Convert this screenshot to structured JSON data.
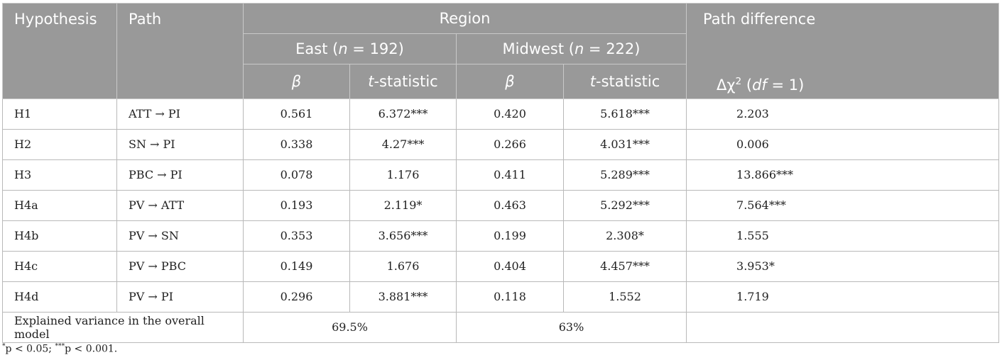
{
  "header": {
    "hypothesis": "Hypothesis",
    "path": "Path",
    "region": "Region",
    "path_difference": "Path difference",
    "east_label": "East (",
    "east_n": "n",
    "east_rest": " = 192)",
    "midwest_label": "Midwest (",
    "midwest_n": "n",
    "midwest_rest": " = 222)",
    "beta": "β",
    "t_italic": "t",
    "t_rest": "-statistic",
    "delta_chi": "Δχ",
    "delta_sup": "2",
    "df_open": " (",
    "df_label": "df",
    "df_close": " = 1)"
  },
  "rows": [
    {
      "hyp": "H1",
      "path": "ATT → PI",
      "east_beta": "0.561",
      "east_t": "6.372***",
      "mw_beta": "0.420",
      "mw_t": "5.618***",
      "diff": "2.203"
    },
    {
      "hyp": "H2",
      "path": "SN → PI",
      "east_beta": "0.338",
      "east_t": "4.27***",
      "mw_beta": "0.266",
      "mw_t": "4.031***",
      "diff": "0.006"
    },
    {
      "hyp": "H3",
      "path": "PBC → PI",
      "east_beta": "0.078",
      "east_t": "1.176",
      "mw_beta": "0.411",
      "mw_t": "5.289***",
      "diff": "13.866***"
    },
    {
      "hyp": "H4a",
      "path": "PV → ATT",
      "east_beta": "0.193",
      "east_t": "2.119*",
      "mw_beta": "0.463",
      "mw_t": "5.292***",
      "diff": "7.564***"
    },
    {
      "hyp": "H4b",
      "path": "PV → SN",
      "east_beta": "0.353",
      "east_t": "3.656***",
      "mw_beta": "0.199",
      "mw_t": "2.308*",
      "diff": "1.555"
    },
    {
      "hyp": "H4c",
      "path": "PV → PBC",
      "east_beta": "0.149",
      "east_t": "1.676",
      "mw_beta": "0.404",
      "mw_t": "4.457***",
      "diff": "3.953*"
    },
    {
      "hyp": "H4d",
      "path": "PV → PI",
      "east_beta": "0.296",
      "east_t": "3.881***",
      "mw_beta": "0.118",
      "mw_t": "1.552",
      "diff": "1.719"
    }
  ],
  "variance": {
    "label": "Explained variance in the overall model",
    "east": "69.5%",
    "midwest": "63%"
  },
  "footnote": {
    "s1": "*",
    "p1": "p < 0.05; ",
    "s2": "***",
    "p2": "p < 0.001."
  }
}
